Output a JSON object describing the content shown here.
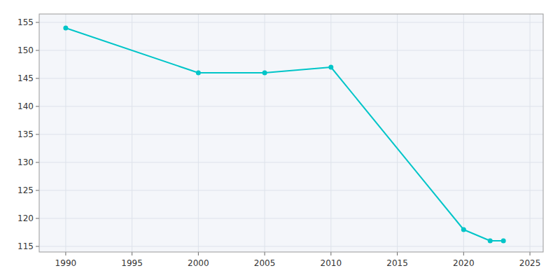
{
  "chart_data": {
    "type": "line",
    "x": [
      1990,
      2000,
      2005,
      2010,
      2020,
      2022,
      2023
    ],
    "values": [
      154,
      146,
      146,
      147,
      118,
      116,
      116
    ],
    "color": "#00C5C8",
    "marker": "circle",
    "xlim": [
      1988,
      2026
    ],
    "ylim": [
      114,
      156.5
    ],
    "xticks": [
      1990,
      1995,
      2000,
      2005,
      2010,
      2015,
      2020,
      2025
    ],
    "yticks": [
      115,
      120,
      125,
      130,
      135,
      140,
      145,
      150,
      155
    ],
    "grid": true
  }
}
